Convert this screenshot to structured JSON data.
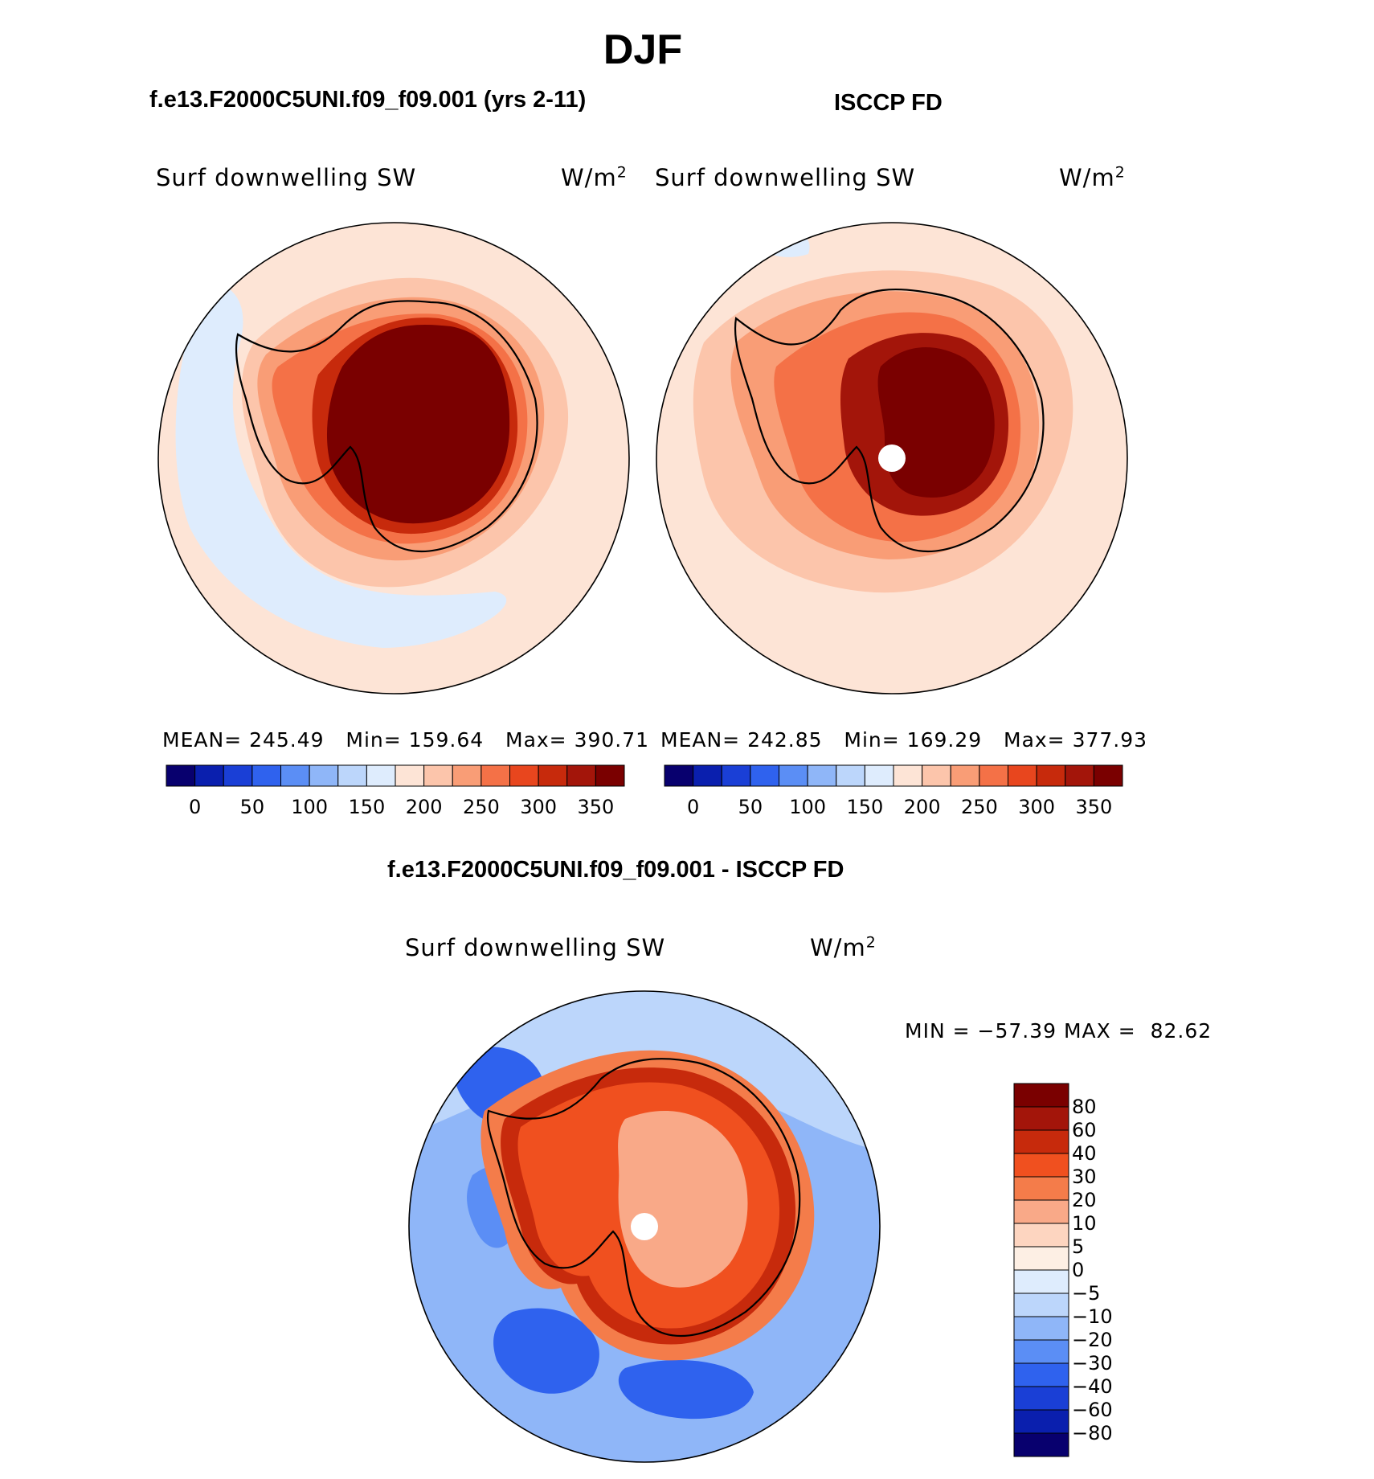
{
  "main_title": "DJF",
  "chart_data": [
    {
      "type": "heatmap",
      "projection": "south-polar-stereographic",
      "title": "f.e13.F2000C5UNI.f09_f09.001 (yrs 2-11)",
      "variable": "Surf downwelling SW",
      "units_base": "W/m",
      "units_exp": "2",
      "stats": {
        "mean_label": "MEAN=",
        "mean": "245.49",
        "min_label": "Min=",
        "min": "159.64",
        "max_label": "Max=",
        "max": "390.71"
      },
      "colorbar": {
        "orientation": "horizontal",
        "levels": [
          0,
          25,
          50,
          75,
          100,
          125,
          150,
          175,
          200,
          225,
          250,
          275,
          300,
          325,
          350
        ],
        "tick_labels": [
          "0",
          "50",
          "100",
          "150",
          "200",
          "250",
          "300",
          "350"
        ],
        "colors": [
          "#08006e",
          "#0a1fae",
          "#1a3fd6",
          "#2f62ee",
          "#5b8ef5",
          "#8fb6f8",
          "#bcd6fb",
          "#deecfd",
          "#fde4d6",
          "#fcc5ab",
          "#f99d76",
          "#f47147",
          "#e8461e",
          "#c72a0c",
          "#a3150a",
          "#7a0000"
        ]
      },
      "fields": {
        "ocean_far": "#fde4d6",
        "ocean_near": "#fcc5ab",
        "coast_ring1": "#f99d76",
        "coast_ring2": "#f47147",
        "interior": "#7a0000",
        "interior_edge": "#c72a0c",
        "low_band": "#deecfd"
      }
    },
    {
      "type": "heatmap",
      "projection": "south-polar-stereographic",
      "title": "ISCCP FD",
      "variable": "Surf downwelling SW",
      "units_base": "W/m",
      "units_exp": "2",
      "stats": {
        "mean_label": "MEAN=",
        "mean": "242.85",
        "min_label": "Min=",
        "min": "169.29",
        "max_label": "Max=",
        "max": "377.93"
      },
      "colorbar": {
        "orientation": "horizontal",
        "levels": [
          0,
          25,
          50,
          75,
          100,
          125,
          150,
          175,
          200,
          225,
          250,
          275,
          300,
          325,
          350
        ],
        "tick_labels": [
          "0",
          "50",
          "100",
          "150",
          "200",
          "250",
          "300",
          "350"
        ],
        "colors": [
          "#08006e",
          "#0a1fae",
          "#1a3fd6",
          "#2f62ee",
          "#5b8ef5",
          "#8fb6f8",
          "#bcd6fb",
          "#deecfd",
          "#fde4d6",
          "#fcc5ab",
          "#f99d76",
          "#f47147",
          "#e8461e",
          "#c72a0c",
          "#a3150a",
          "#7a0000"
        ]
      },
      "fields": {
        "ocean_far": "#fde4d6",
        "ocean_near": "#fcc5ab",
        "coast_ring1": "#f99d76",
        "coast_ring2": "#f47147",
        "interior": "#7a0000",
        "interior_edge": "#a3150a",
        "low_band": "#deecfd"
      }
    },
    {
      "type": "heatmap",
      "projection": "south-polar-stereographic",
      "title": "f.e13.F2000C5UNI.f09_f09.001 - ISCCP FD",
      "variable": "Surf downwelling SW",
      "units_base": "W/m",
      "units_exp": "2",
      "stats": {
        "min_label": "MIN =",
        "min": "−57.39",
        "max_label": "MAX =",
        "max": "82.62"
      },
      "colorbar": {
        "orientation": "vertical",
        "tick_labels": [
          "80",
          "60",
          "40",
          "30",
          "20",
          "10",
          "5",
          "0",
          "−5",
          "−10",
          "−20",
          "−30",
          "−40",
          "−60",
          "−80"
        ],
        "colors": [
          "#7a0000",
          "#a3150a",
          "#c72a0c",
          "#f0501f",
          "#f47c4a",
          "#f9a988",
          "#fdd5c0",
          "#fdefe4",
          "#deecfd",
          "#bcd6fb",
          "#8fb6f8",
          "#5b8ef5",
          "#2f62ee",
          "#1a3fd6",
          "#0a1fae",
          "#08006e"
        ]
      },
      "fields": {
        "ocean": "#8fb6f8",
        "ocean_light": "#bcd6fb",
        "ocean_deep": "#2f62ee",
        "coast": "#f47c4a",
        "coast2": "#c72a0c",
        "interior": "#f9a988",
        "interior2": "#f0501f"
      }
    }
  ]
}
